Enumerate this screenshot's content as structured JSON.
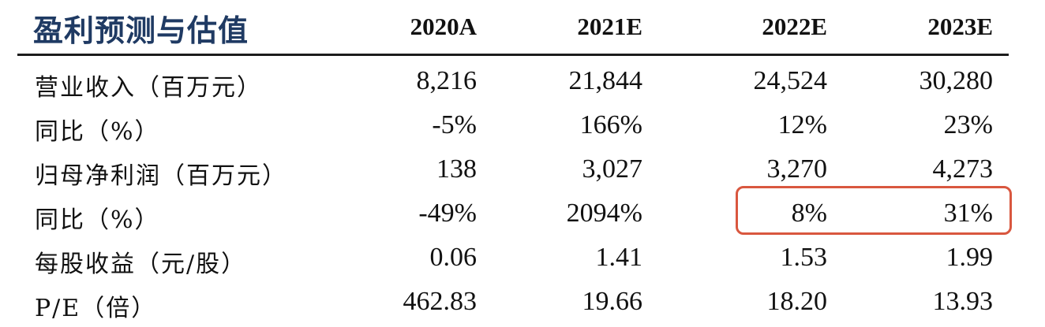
{
  "table": {
    "title": "盈利预测与估值",
    "years": [
      "2020A",
      "2021E",
      "2022E",
      "2023E"
    ],
    "rows": [
      {
        "label": "营业收入（百万元）",
        "values": [
          "8,216",
          "21,844",
          "24,524",
          "30,280"
        ]
      },
      {
        "label": "同比（%）",
        "values": [
          "-5%",
          "166%",
          "12%",
          "23%"
        ]
      },
      {
        "label": "归母净利润（百万元）",
        "values": [
          "138",
          "3,027",
          "3,270",
          "4,273"
        ]
      },
      {
        "label": "同比（%）",
        "values": [
          "-49%",
          "2094%",
          "8%",
          "31%"
        ]
      },
      {
        "label": "每股收益（元/股）",
        "values": [
          "0.06",
          "1.41",
          "1.53",
          "1.99"
        ]
      },
      {
        "label": "P/E（倍）",
        "values": [
          "462.83",
          "19.66",
          "18.20",
          "13.93"
        ]
      }
    ]
  },
  "colors": {
    "title": "#1f3a63",
    "highlight_border": "#d9573f",
    "rule": "#1c1c1c"
  }
}
